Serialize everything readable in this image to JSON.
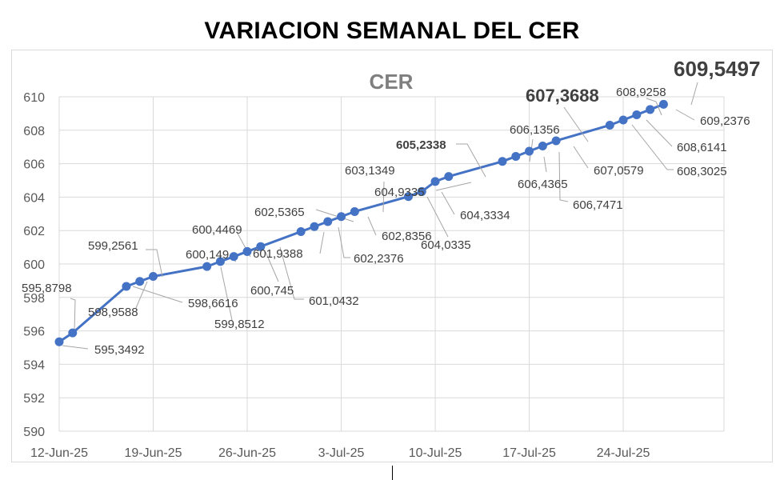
{
  "page": {
    "title": "VARIACION SEMANAL DEL CER"
  },
  "chart_data": {
    "type": "line",
    "title": "CER",
    "xlabel": "",
    "ylabel": "",
    "ylim": [
      590,
      610
    ],
    "ytick_step": 2,
    "yticks": [
      "590",
      "592",
      "594",
      "596",
      "598",
      "600",
      "602",
      "604",
      "606",
      "608",
      "610"
    ],
    "xlim": [
      "2025-06-12",
      "2025-07-29"
    ],
    "xticks": [
      {
        "date": "2025-06-12",
        "label": "12-Jun-25"
      },
      {
        "date": "2025-06-19",
        "label": "19-Jun-25"
      },
      {
        "date": "2025-06-26",
        "label": "26-Jun-25"
      },
      {
        "date": "2025-07-03",
        "label": "3-Jul-25"
      },
      {
        "date": "2025-07-10",
        "label": "10-Jul-25"
      },
      {
        "date": "2025-07-17",
        "label": "17-Jul-25"
      },
      {
        "date": "2025-07-24",
        "label": "24-Jul-25"
      }
    ],
    "grid": true,
    "line_color": "#4472c4",
    "series": [
      {
        "points": [
          {
            "x": "2025-06-12",
            "y": 595.3492,
            "label": "595,3492"
          },
          {
            "x": "2025-06-13",
            "y": 595.8798,
            "label": "595,8798"
          },
          {
            "x": "2025-06-17",
            "y": 598.6616,
            "label": "598,6616"
          },
          {
            "x": "2025-06-18",
            "y": 598.9588,
            "label": "598,9588"
          },
          {
            "x": "2025-06-19",
            "y": 599.2561,
            "label": "599,2561"
          },
          {
            "x": "2025-06-23",
            "y": 599.8512,
            "label": "599,8512"
          },
          {
            "x": "2025-06-24",
            "y": 600.149,
            "label": "600,149"
          },
          {
            "x": "2025-06-25",
            "y": 600.4469,
            "label": "600,4469"
          },
          {
            "x": "2025-06-26",
            "y": 600.745,
            "label": "600,745"
          },
          {
            "x": "2025-06-27",
            "y": 601.0432,
            "label": "601,0432"
          },
          {
            "x": "2025-06-30",
            "y": 601.9388,
            "label": "601,9388"
          },
          {
            "x": "2025-07-01",
            "y": 602.2376,
            "label": "602,2376"
          },
          {
            "x": "2025-07-02",
            "y": 602.5365,
            "label": "602,5365"
          },
          {
            "x": "2025-07-03",
            "y": 602.8356,
            "label": "602,8356"
          },
          {
            "x": "2025-07-04",
            "y": 603.1349,
            "label": "603,1349"
          },
          {
            "x": "2025-07-08",
            "y": 604.0335,
            "label": "604,0335"
          },
          {
            "x": "2025-07-09",
            "y": 604.3334,
            "label": "604,3334"
          },
          {
            "x": "2025-07-10",
            "y": 604.9335,
            "label": "604,9335"
          },
          {
            "x": "2025-07-11",
            "y": 605.2338,
            "label": "605,2338"
          },
          {
            "x": "2025-07-15",
            "y": 606.1356,
            "label": "606,1356"
          },
          {
            "x": "2025-07-16",
            "y": 606.4365,
            "label": "606,4365"
          },
          {
            "x": "2025-07-17",
            "y": 606.7471,
            "label": "606,7471"
          },
          {
            "x": "2025-07-18",
            "y": 607.0579,
            "label": "607,0579"
          },
          {
            "x": "2025-07-19",
            "y": 607.3688,
            "label": "607,3688"
          },
          {
            "x": "2025-07-23",
            "y": 608.3025,
            "label": "608,3025"
          },
          {
            "x": "2025-07-24",
            "y": 608.6141,
            "label": "608,6141"
          },
          {
            "x": "2025-07-25",
            "y": 608.9258,
            "label": "608,9258"
          },
          {
            "x": "2025-07-26",
            "y": 609.2376,
            "label": "609,2376"
          },
          {
            "x": "2025-07-27",
            "y": 609.5497,
            "label": "609,5497"
          }
        ]
      }
    ]
  }
}
